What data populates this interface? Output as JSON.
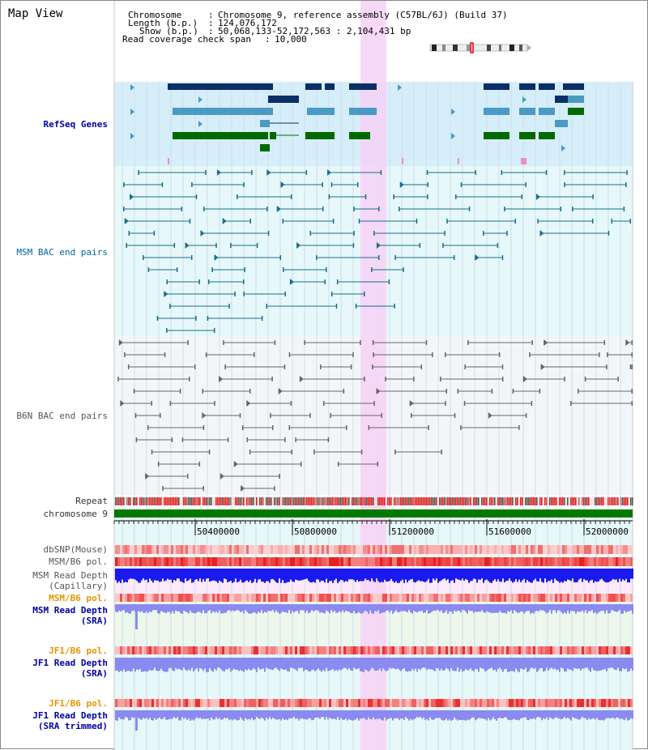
{
  "panel": {
    "title": "Map View"
  },
  "header": {
    "chromosome_key": "Chromosome",
    "chromosome_value": "Chromosome 9, reference assembly (C57BL/6J) (Build 37)",
    "length_key": "Length (b.p.)",
    "length_value": "124,076,172",
    "show_key": "Show (b.p.)",
    "show_value": "50,068,133-52,172,563 : 2,104,431 bp",
    "coverage_key": "Read coverage check span",
    "coverage_value": "10,000",
    "separator": ":"
  },
  "tracks": {
    "refseq": "RefSeq Genes",
    "msm_bac": "MSM BAC end pairs",
    "b6n_bac": "B6N BAC end pairs",
    "repeat": "Repeat",
    "chromosome": "chromosome 9",
    "dbsnp": "dbSNP(Mouse)",
    "msm_b6_pol": "MSM/B6 pol.",
    "msm_read_depth_cap_1": "MSM Read Depth",
    "msm_read_depth_cap_2": "(Capillary)",
    "msm_b6_pol_2": "MSM/B6 pol.",
    "msm_read_depth_sra_1": "MSM Read Depth",
    "msm_read_depth_sra_2": "(SRA)",
    "jf1_b6_pol": "JF1/B6 pol.",
    "jf1_read_depth_1": "JF1 Read Depth",
    "jf1_read_depth_2": "(SRA)",
    "jf1_b6_pol_2": "JF1/B6 pol.",
    "jf1_read_depth_trim_1": "JF1 Read Depth",
    "jf1_read_depth_trim_2": "(SRA trimmed)"
  },
  "axis": {
    "ticks": [
      "50400000",
      "50800000",
      "51200000",
      "51600000",
      "52000000"
    ]
  },
  "colors": {
    "refseq_bg": "#d6eefa",
    "msm_bg": "#e6f8fa",
    "b6n_bg": "#f3f6f9",
    "lower_bg": "#e6f8f8",
    "highlight": "#f6d2f6",
    "gene_navy": "#0b2e66",
    "gene_light": "#4a9ac4",
    "gene_green": "#006a00",
    "msm_line": "#1a6e8a",
    "b6n_line": "#666666",
    "chrom_green": "#007a00",
    "pol_red": "#f03a3a",
    "depth_blue": "#1a1aee",
    "depth_light": "#8a8af0"
  }
}
